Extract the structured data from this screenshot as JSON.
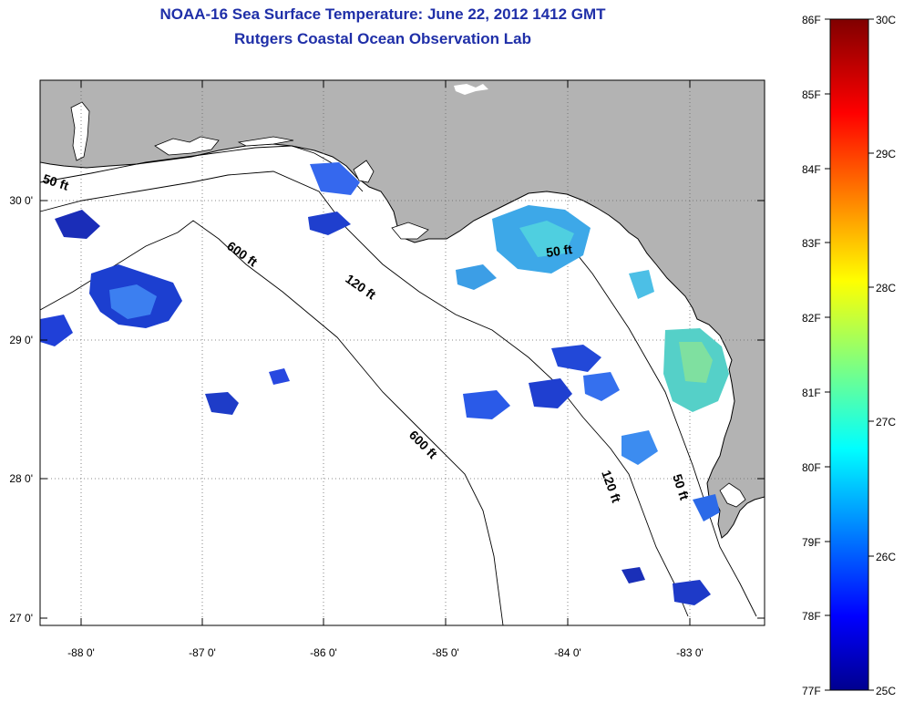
{
  "title": {
    "line1": "NOAA-16 Sea Surface Temperature:  June 22, 2012 1412 GMT",
    "line2": "Rutgers Coastal Ocean Observation Lab"
  },
  "map": {
    "x_ticks": [
      "-88 0'",
      "-87 0'",
      "-86 0'",
      "-85 0'",
      "-84 0'",
      "-83 0'"
    ],
    "y_ticks": [
      "30 0'",
      "29 0'",
      "28 0'",
      "27 0'"
    ],
    "contour_labels": [
      "50 ft",
      "600 ft",
      "120 ft",
      "50 ft",
      "600 ft",
      "120 ft",
      "50 ft"
    ],
    "colors": {
      "land": "#b3b3b3",
      "ocean": "#ffffff"
    }
  },
  "colorbar": {
    "fahrenheit_labels": [
      "86F",
      "85F",
      "84F",
      "83F",
      "82F",
      "81F",
      "80F",
      "79F",
      "78F",
      "77F"
    ],
    "celsius_labels": [
      "30C",
      "29C",
      "28C",
      "27C",
      "26C",
      "25C"
    ],
    "range_c": [
      25,
      30
    ],
    "colormap": "jet"
  }
}
